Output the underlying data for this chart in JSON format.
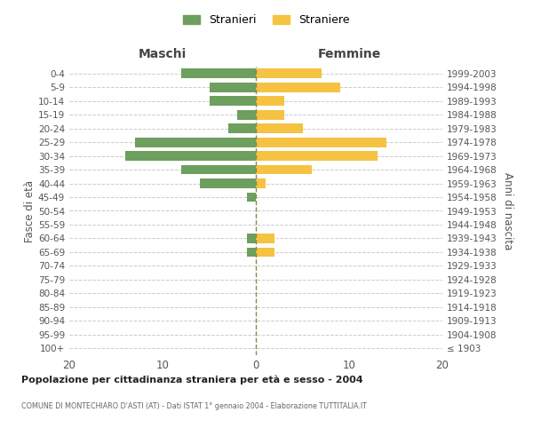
{
  "age_groups": [
    "100+",
    "95-99",
    "90-94",
    "85-89",
    "80-84",
    "75-79",
    "70-74",
    "65-69",
    "60-64",
    "55-59",
    "50-54",
    "45-49",
    "40-44",
    "35-39",
    "30-34",
    "25-29",
    "20-24",
    "15-19",
    "10-14",
    "5-9",
    "0-4"
  ],
  "birth_years": [
    "≤ 1903",
    "1904-1908",
    "1909-1913",
    "1914-1918",
    "1919-1923",
    "1924-1928",
    "1929-1933",
    "1934-1938",
    "1939-1943",
    "1944-1948",
    "1949-1953",
    "1954-1958",
    "1959-1963",
    "1964-1968",
    "1969-1973",
    "1974-1978",
    "1979-1983",
    "1984-1988",
    "1989-1993",
    "1994-1998",
    "1999-2003"
  ],
  "maschi": [
    0,
    0,
    0,
    0,
    0,
    0,
    0,
    1,
    1,
    0,
    0,
    1,
    6,
    8,
    14,
    13,
    3,
    2,
    5,
    5,
    8
  ],
  "femmine": [
    0,
    0,
    0,
    0,
    0,
    0,
    0,
    2,
    2,
    0,
    0,
    0,
    1,
    6,
    13,
    14,
    5,
    3,
    3,
    9,
    7
  ],
  "maschi_color": "#6d9f5e",
  "femmine_color": "#f5c242",
  "title": "Popolazione per cittadinanza straniera per età e sesso - 2004",
  "subtitle": "COMUNE DI MONTECHIARO D'ASTI (AT) - Dati ISTAT 1° gennaio 2004 - Elaborazione TUTTITALIA.IT",
  "label_maschi_top": "Maschi",
  "label_femmine_top": "Femmine",
  "ylabel_left": "Fasce di età",
  "ylabel_right": "Anni di nascita",
  "legend_maschi": "Stranieri",
  "legend_femmine": "Straniere",
  "xlim": 20,
  "bg_color": "#ffffff",
  "grid_color": "#cccccc",
  "center_line_color": "#888855"
}
